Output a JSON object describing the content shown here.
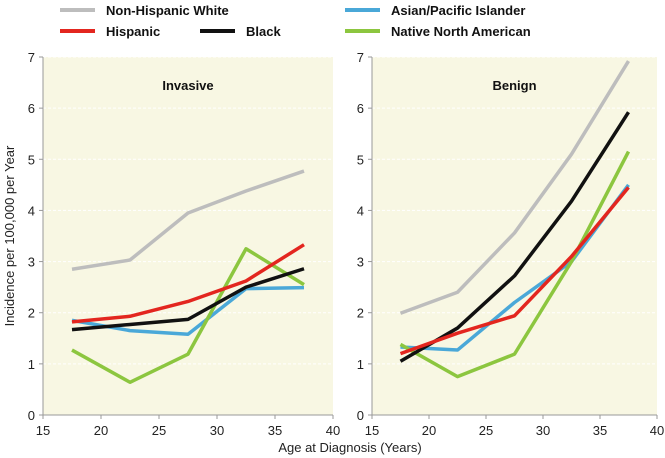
{
  "chart_data": [
    {
      "type": "line",
      "title": "Invasive",
      "xlabel": "Age at Diagnosis (Years)",
      "ylabel": "Incidence per 100,000 per Year",
      "xlim": [
        15,
        40
      ],
      "ylim": [
        0,
        7
      ],
      "xticks": [
        "15",
        "20",
        "25",
        "30",
        "35",
        "40"
      ],
      "yticks": [
        "0",
        "1",
        "2",
        "3",
        "4",
        "5",
        "6",
        "7"
      ],
      "x": [
        17.5,
        22.5,
        27.5,
        32.5,
        37.5
      ],
      "series": [
        {
          "name": "Non-Hispanic White",
          "color": "#bdbdbd",
          "values": [
            2.85,
            3.03,
            3.95,
            4.38,
            4.77
          ]
        },
        {
          "name": "Asian/Pacific Islander",
          "color": "#4aa8d8",
          "values": [
            1.85,
            1.65,
            1.58,
            2.47,
            2.49
          ]
        },
        {
          "name": "Native North American",
          "color": "#8cc63f",
          "values": [
            1.27,
            0.64,
            1.19,
            3.25,
            2.55
          ]
        },
        {
          "name": "Black",
          "color": "#111111",
          "values": [
            1.67,
            1.77,
            1.87,
            2.5,
            2.86
          ]
        },
        {
          "name": "Hispanic",
          "color": "#e3261f",
          "values": [
            1.82,
            1.93,
            2.22,
            2.62,
            3.33
          ]
        }
      ]
    },
    {
      "type": "line",
      "title": "Benign",
      "xlim": [
        15,
        40
      ],
      "ylim": [
        0,
        7
      ],
      "xticks": [
        "15",
        "20",
        "25",
        "30",
        "35",
        "40"
      ],
      "yticks": [
        "0",
        "1",
        "2",
        "3",
        "4",
        "5",
        "6",
        "7"
      ],
      "x": [
        17.5,
        22.5,
        27.5,
        32.5,
        37.5
      ],
      "series": [
        {
          "name": "Non-Hispanic White",
          "color": "#bdbdbd",
          "values": [
            1.99,
            2.4,
            3.56,
            5.1,
            6.92
          ]
        },
        {
          "name": "Asian/Pacific Islander",
          "color": "#4aa8d8",
          "values": [
            1.33,
            1.27,
            2.2,
            3.0,
            4.5
          ]
        },
        {
          "name": "Native North American",
          "color": "#8cc63f",
          "values": [
            1.38,
            0.75,
            1.19,
            3.0,
            5.15
          ]
        },
        {
          "name": "Black",
          "color": "#111111",
          "values": [
            1.05,
            1.7,
            2.72,
            4.18,
            5.92
          ]
        },
        {
          "name": "Hispanic",
          "color": "#e3261f",
          "values": [
            1.2,
            1.6,
            1.94,
            3.1,
            4.45
          ]
        }
      ]
    }
  ],
  "legend": [
    {
      "label": "Non-Hispanic White",
      "color": "#bdbdbd"
    },
    {
      "label": "Asian/Pacific Islander",
      "color": "#4aa8d8"
    },
    {
      "label": "Hispanic",
      "color": "#e3261f"
    },
    {
      "label": "Black",
      "color": "#111111"
    },
    {
      "label": "Native North American",
      "color": "#8cc63f"
    }
  ],
  "legend_placement": "top",
  "plot_background": "#f8f7e3"
}
